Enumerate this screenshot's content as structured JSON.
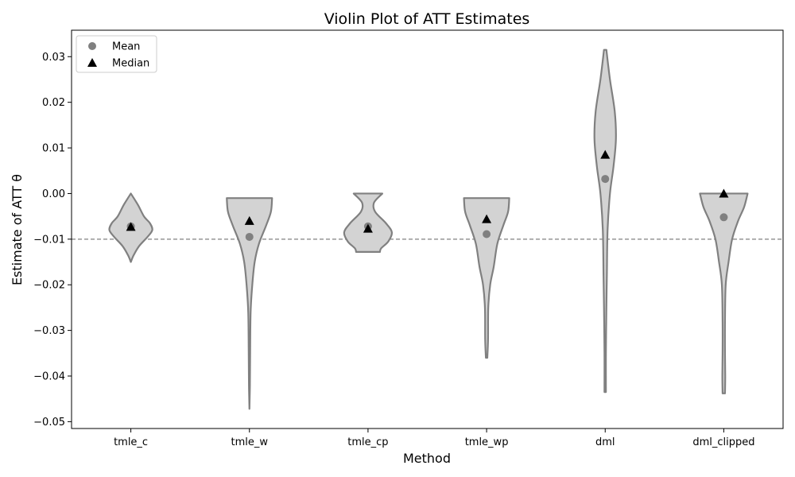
{
  "chart_data": {
    "type": "violin",
    "title": "Violin Plot of ATT Estimates",
    "xlabel": "Method",
    "ylabel": "Estimate of ATT θ",
    "categories": [
      "tmle_c",
      "tmle_w",
      "tmle_cp",
      "tmle_wp",
      "dml",
      "dml_clipped"
    ],
    "ylim": [
      -0.0515,
      0.0358
    ],
    "yticks": [
      -0.05,
      -0.04,
      -0.03,
      -0.02,
      -0.01,
      0.0,
      0.01,
      0.02,
      0.03
    ],
    "ytick_labels": [
      "−0.05",
      "−0.04",
      "−0.03",
      "−0.02",
      "−0.01",
      "0.00",
      "0.01",
      "0.02",
      "0.03"
    ],
    "reference_line": {
      "y": -0.01,
      "style": "dashed"
    },
    "means": [
      -0.0072,
      -0.0095,
      -0.0072,
      -0.0089,
      0.0032,
      -0.0052
    ],
    "medians": [
      -0.0073,
      -0.006,
      -0.0077,
      -0.0056,
      0.0085,
      0.0
    ],
    "violins": [
      {
        "name": "tmle_c",
        "profile": [
          [
            0.0,
            0.0
          ],
          [
            -0.0025,
            0.3
          ],
          [
            -0.005,
            0.55
          ],
          [
            -0.0065,
            0.8
          ],
          [
            -0.008,
            0.9
          ],
          [
            -0.0095,
            0.7
          ],
          [
            -0.0115,
            0.35
          ],
          [
            -0.0135,
            0.12
          ],
          [
            -0.015,
            0.0
          ]
        ]
      },
      {
        "name": "tmle_w",
        "profile": [
          [
            -0.001,
            0.95
          ],
          [
            -0.004,
            0.9
          ],
          [
            -0.007,
            0.7
          ],
          [
            -0.011,
            0.4
          ],
          [
            -0.015,
            0.22
          ],
          [
            -0.02,
            0.12
          ],
          [
            -0.026,
            0.05
          ],
          [
            -0.035,
            0.03
          ],
          [
            -0.042,
            0.02
          ],
          [
            -0.0472,
            0.0
          ]
        ]
      },
      {
        "name": "tmle_cp",
        "profile": [
          [
            0.0,
            0.6
          ],
          [
            -0.002,
            0.25
          ],
          [
            -0.004,
            0.3
          ],
          [
            -0.0065,
            0.75
          ],
          [
            -0.0085,
            1.0
          ],
          [
            -0.0105,
            0.85
          ],
          [
            -0.012,
            0.55
          ],
          [
            -0.0128,
            0.5
          ]
        ]
      },
      {
        "name": "tmle_wp",
        "profile": [
          [
            -0.001,
            0.95
          ],
          [
            -0.004,
            0.9
          ],
          [
            -0.007,
            0.7
          ],
          [
            -0.011,
            0.45
          ],
          [
            -0.016,
            0.3
          ],
          [
            -0.02,
            0.15
          ],
          [
            -0.025,
            0.07
          ],
          [
            -0.032,
            0.06
          ],
          [
            -0.036,
            0.03
          ]
        ]
      },
      {
        "name": "dml",
        "profile": [
          [
            0.0315,
            0.05
          ],
          [
            0.025,
            0.2
          ],
          [
            0.018,
            0.4
          ],
          [
            0.012,
            0.45
          ],
          [
            0.006,
            0.35
          ],
          [
            0.0,
            0.2
          ],
          [
            -0.008,
            0.1
          ],
          [
            -0.018,
            0.07
          ],
          [
            -0.025,
            0.05
          ],
          [
            -0.035,
            0.03
          ],
          [
            -0.0435,
            0.03
          ]
        ]
      },
      {
        "name": "dml_clipped",
        "profile": [
          [
            0.0,
            1.0
          ],
          [
            -0.003,
            0.85
          ],
          [
            -0.006,
            0.6
          ],
          [
            -0.01,
            0.35
          ],
          [
            -0.015,
            0.2
          ],
          [
            -0.02,
            0.08
          ],
          [
            -0.028,
            0.05
          ],
          [
            -0.035,
            0.05
          ],
          [
            -0.04,
            0.06
          ],
          [
            -0.0438,
            0.05
          ]
        ]
      }
    ],
    "legend": {
      "position": "top-left",
      "entries": [
        {
          "label": "Mean",
          "marker": "circle",
          "color": "#808080"
        },
        {
          "label": "Median",
          "marker": "triangle",
          "color": "#000000"
        }
      ]
    },
    "colors": {
      "violin_fill": "#d3d3d3",
      "violin_edge": "#808080",
      "mean_marker": "#808080",
      "median_marker": "#000000",
      "reference_line": "#808080"
    },
    "grid": false
  }
}
